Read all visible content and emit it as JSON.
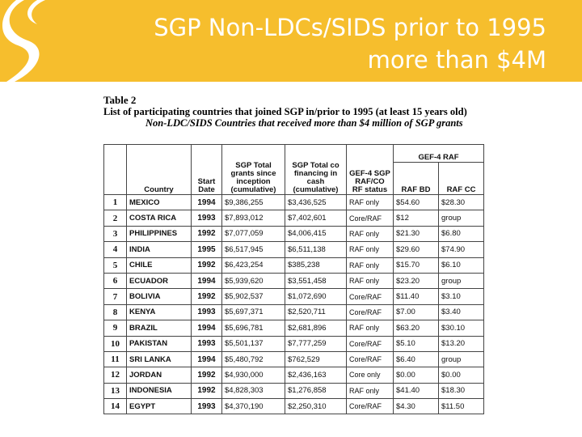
{
  "slide": {
    "title_line1": "SGP Non-LDCs/SIDS prior to 1995",
    "title_line2": "more than $4M",
    "brand_color": "#f6be2d"
  },
  "doc": {
    "table_label": "Table 2",
    "caption": "List of participating countries that joined SGP in/prior to 1995 (at least 15 years old)",
    "subcaption": "Non-LDC/SIDS Countries that received more than $4 million of SGP grants"
  },
  "table": {
    "headers": {
      "country": "Country",
      "start_date": "Start Date",
      "grants": "SGP Total grants since inception (cumulative)",
      "cofinancing": "SGP Total co financing in cash (cumulative)",
      "gef4_status": "GEF-4 SGP RAF/CO RF status",
      "gef4_group": "GEF-4 RAF",
      "raf_bd": "RAF BD",
      "raf_cc": "RAF CC"
    },
    "rows": [
      {
        "num": "1",
        "country": "MEXICO",
        "date": "1994",
        "grants": "$9,386,255",
        "cofin": "$3,436,525",
        "status": "RAF only",
        "bd": "$54.60",
        "cc": "$28.30"
      },
      {
        "num": "2",
        "country": "COSTA RICA",
        "date": "1993",
        "grants": "$7,893,012",
        "cofin": "$7,402,601",
        "status": "Core/RAF",
        "bd": "$12",
        "cc": "group"
      },
      {
        "num": "3",
        "country": "PHILIPPINES",
        "date": "1992",
        "grants": "$7,077,059",
        "cofin": "$4,006,415",
        "status": "RAF only",
        "bd": "$21.30",
        "cc": "$6.80"
      },
      {
        "num": "4",
        "country": "INDIA",
        "date": "1995",
        "grants": "$6,517,945",
        "cofin": "$6,511,138",
        "status": "RAF only",
        "bd": "$29.60",
        "cc": "$74.90"
      },
      {
        "num": "5",
        "country": "CHILE",
        "date": "1992",
        "grants": "$6,423,254",
        "cofin": "$385,238",
        "status": "RAF only",
        "bd": "$15.70",
        "cc": "$6.10"
      },
      {
        "num": "6",
        "country": "ECUADOR",
        "date": "1994",
        "grants": "$5,939,620",
        "cofin": "$3,551,458",
        "status": "RAF only",
        "bd": "$23.20",
        "cc": "group"
      },
      {
        "num": "7",
        "country": "BOLIVIA",
        "date": "1992",
        "grants": "$5,902,537",
        "cofin": "$1,072,690",
        "status": "Core/RAF",
        "bd": "$11.40",
        "cc": "$3.10"
      },
      {
        "num": "8",
        "country": "KENYA",
        "date": "1993",
        "grants": "$5,697,371",
        "cofin": "$2,520,711",
        "status": "Core/RAF",
        "bd": "$7.00",
        "cc": "$3.40"
      },
      {
        "num": "9",
        "country": "BRAZIL",
        "date": "1994",
        "grants": "$5,696,781",
        "cofin": "$2,681,896",
        "status": "RAF only",
        "bd": "$63.20",
        "cc": "$30.10"
      },
      {
        "num": "10",
        "country": "PAKISTAN",
        "date": "1993",
        "grants": "$5,501,137",
        "cofin": "$7,777,259",
        "status": "Core/RAF",
        "bd": "$5.10",
        "cc": "$13.20"
      },
      {
        "num": "11",
        "country": "SRI LANKA",
        "date": "1994",
        "grants": "$5,480,792",
        "cofin": "$762,529",
        "status": "Core/RAF",
        "bd": "$6.40",
        "cc": "group"
      },
      {
        "num": "12",
        "country": "JORDAN",
        "date": "1992",
        "grants": "$4,930,000",
        "cofin": "$2,436,163",
        "status": "Core only",
        "bd": "$0.00",
        "cc": "$0.00"
      },
      {
        "num": "13",
        "country": "INDONESIA",
        "date": "1992",
        "grants": "$4,828,303",
        "cofin": "$1,276,858",
        "status": "RAF only",
        "bd": "$41.40",
        "cc": "$18.30"
      },
      {
        "num": "14",
        "country": "EGYPT",
        "date": "1993",
        "grants": "$4,370,190",
        "cofin": "$2,250,310",
        "status": "Core/RAF",
        "bd": "$4.30",
        "cc": "$11.50"
      }
    ]
  }
}
